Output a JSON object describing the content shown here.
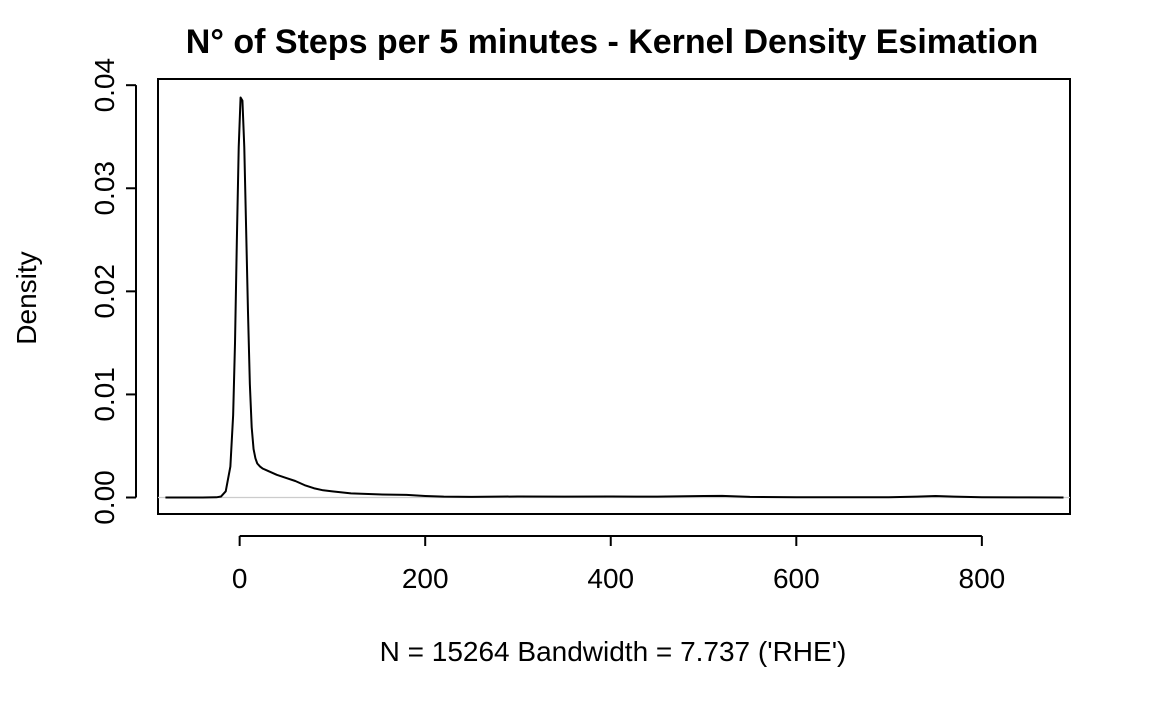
{
  "chart_data": {
    "type": "line",
    "title": "N° of Steps per 5 minutes - Kernel Density Esimation",
    "xlabel": "N = 15264   Bandwidth = 7.737 ('RHE')",
    "ylabel": "Density",
    "xlim": [
      -88,
      895
    ],
    "ylim": [
      -0.0016,
      0.0406
    ],
    "x_ticks": [
      0,
      200,
      400,
      600,
      800
    ],
    "x_tick_labels": [
      "0",
      "200",
      "400",
      "600",
      "800"
    ],
    "y_ticks": [
      0.0,
      0.01,
      0.02,
      0.03,
      0.04
    ],
    "y_tick_labels": [
      "0.00",
      "0.01",
      "0.02",
      "0.03",
      "0.04"
    ],
    "grid": false,
    "reference_line_y": 0,
    "line_color": "#000000",
    "reference_line_color": "#cccccc",
    "series": [
      {
        "x": [
          -80,
          -40,
          -25,
          -20,
          -15,
          -10,
          -7,
          -5,
          -3,
          -1,
          1,
          3,
          5,
          7,
          9,
          11,
          13,
          15,
          17,
          19,
          22,
          25,
          30,
          40,
          50,
          60,
          70,
          80,
          90,
          100,
          120,
          150,
          180,
          200,
          220,
          250,
          300,
          350,
          400,
          450,
          500,
          520,
          550,
          600,
          650,
          700,
          730,
          750,
          770,
          800,
          850,
          888
        ],
        "y": [
          0,
          0,
          2e-05,
          0.0001,
          0.0006,
          0.003,
          0.008,
          0.015,
          0.025,
          0.034,
          0.0388,
          0.0385,
          0.034,
          0.026,
          0.018,
          0.011,
          0.0068,
          0.0047,
          0.0038,
          0.0033,
          0.003,
          0.0028,
          0.0026,
          0.0022,
          0.0019,
          0.0016,
          0.0012,
          0.0009,
          0.0007,
          0.0006,
          0.0004,
          0.0003,
          0.00025,
          0.00015,
          8e-05,
          6e-05,
          0.0001,
          8e-05,
          0.0001,
          8e-05,
          0.00015,
          0.00016,
          6e-05,
          3e-05,
          2e-05,
          3e-05,
          8e-05,
          0.00014,
          8e-05,
          3e-05,
          1e-05,
          0
        ]
      }
    ]
  }
}
